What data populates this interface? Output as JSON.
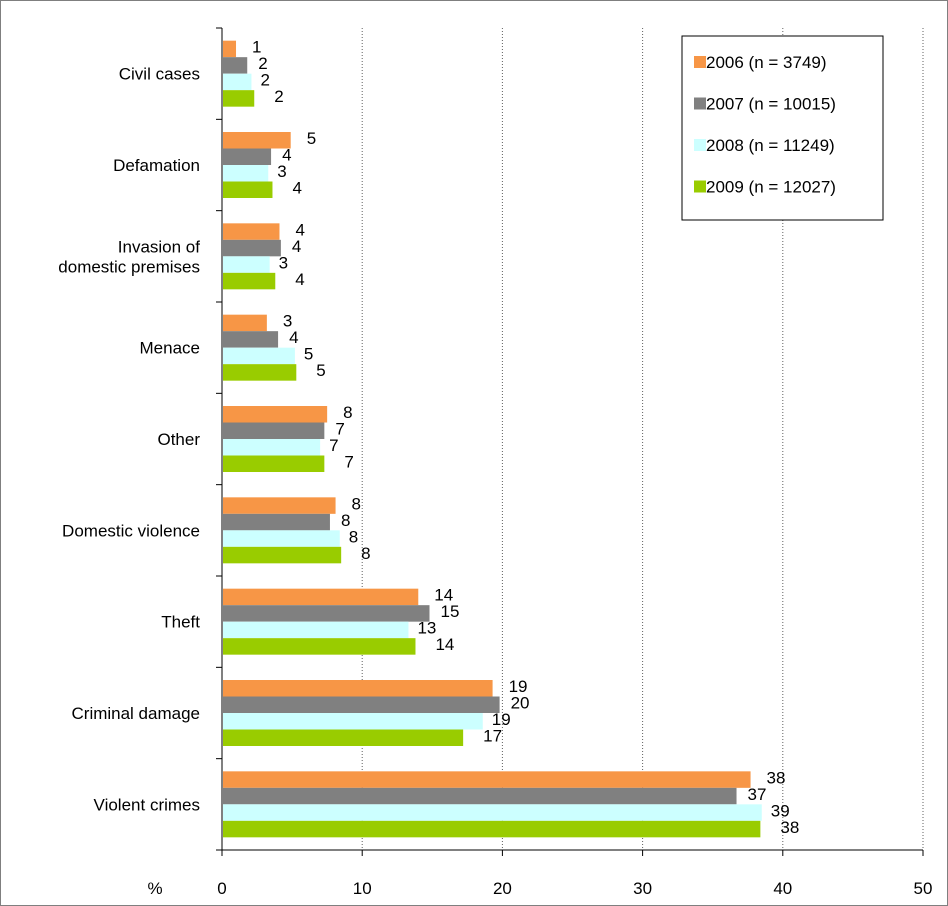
{
  "chart_data": {
    "type": "bar",
    "orientation": "horizontal",
    "title": "",
    "xlabel": "%",
    "ylabel": "",
    "xlim": [
      0,
      50
    ],
    "x_ticks": [
      0,
      10,
      20,
      30,
      40,
      50
    ],
    "grid": "vertical dotted lines at x ticks",
    "legend_position": "top-right",
    "categories": [
      "Civil cases",
      "Defamation",
      "Invasion of domestic premises",
      "Menace",
      "Other",
      "Domestic violence",
      "Theft",
      "Criminal damage",
      "Violent crimes"
    ],
    "category_lines": [
      [
        "Civil cases"
      ],
      [
        "Defamation"
      ],
      [
        "Invasion of",
        "domestic premises"
      ],
      [
        "Menace"
      ],
      [
        "Other"
      ],
      [
        "Domestic violence"
      ],
      [
        "Theft"
      ],
      [
        "Criminal damage"
      ],
      [
        "Violent crimes"
      ]
    ],
    "series": [
      {
        "name": "2006 (n = 3749)",
        "color": "#F79646",
        "values": [
          1.0,
          4.9,
          4.1,
          3.2,
          7.5,
          8.1,
          14.0,
          19.3,
          37.7
        ],
        "labels": [
          "1",
          "5",
          "4",
          "3",
          "8",
          "8",
          "14",
          "19",
          "38"
        ]
      },
      {
        "name": "2007 (n = 10015)",
        "color": "#808080",
        "values": [
          1.8,
          3.5,
          4.2,
          4.0,
          7.3,
          7.7,
          14.8,
          19.8,
          36.7
        ],
        "labels": [
          "2",
          "4",
          "4",
          "4",
          "7",
          "8",
          "15",
          "20",
          "37"
        ]
      },
      {
        "name": "2008 (n = 11249)",
        "color": "#CCFFFF",
        "values": [
          2.1,
          3.3,
          3.4,
          5.2,
          7.0,
          8.4,
          13.3,
          18.6,
          38.5
        ],
        "labels": [
          "2",
          "3",
          "3",
          "5",
          "7",
          "8",
          "13",
          "19",
          "39"
        ]
      },
      {
        "name": "2009 (n = 12027)",
        "color": "#99CC00",
        "values": [
          2.3,
          3.6,
          3.8,
          5.3,
          7.3,
          8.5,
          13.8,
          17.2,
          38.4
        ],
        "labels": [
          "2",
          "4",
          "4",
          "5",
          "7",
          "8",
          "14",
          "17",
          "38"
        ]
      }
    ]
  }
}
